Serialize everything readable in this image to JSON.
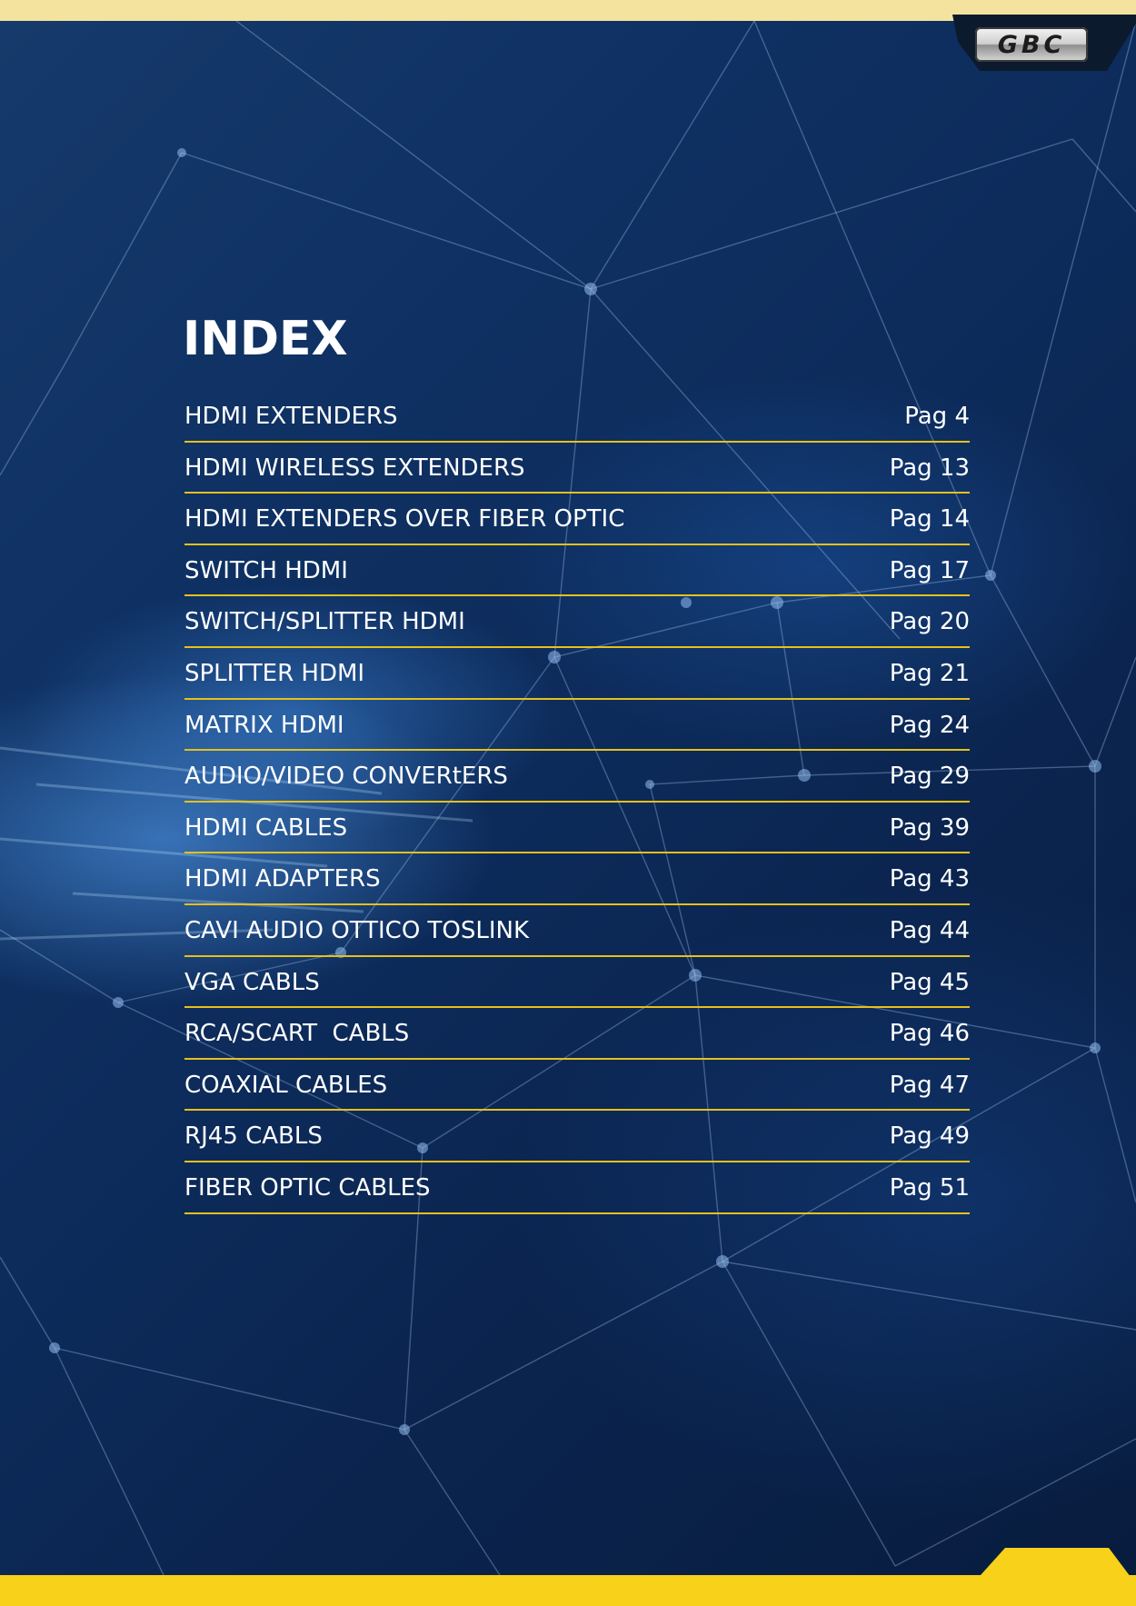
{
  "brand": {
    "logo_text": "GBC",
    "colors": {
      "accent_yellow": "#f7d11a",
      "divider_yellow": "#e6c119",
      "background_blue": "#0d2c5c",
      "text": "#ffffff"
    }
  },
  "index": {
    "title": "INDEX",
    "items": [
      {
        "label": "HDMI EXTENDERS",
        "page": "Pag 4"
      },
      {
        "label": "HDMI WIRELESS EXTENDERS",
        "page": "Pag 13"
      },
      {
        "label": "HDMI EXTENDERS OVER FIBER OPTIC",
        "page": "Pag 14"
      },
      {
        "label": "SWITCH HDMI",
        "page": "Pag 17"
      },
      {
        "label": "SWITCH/SPLITTER HDMI",
        "page": "Pag 20"
      },
      {
        "label": "SPLITTER HDMI",
        "page": "Pag 21"
      },
      {
        "label": "MATRIX HDMI",
        "page": "Pag 24"
      },
      {
        "label": "AUDIO/VIDEO CONVERtERS",
        "page": "Pag 29"
      },
      {
        "label": "HDMI CABLES",
        "page": "Pag 39"
      },
      {
        "label": "HDMI ADAPTERS",
        "page": "Pag 43"
      },
      {
        "label": "CAVI AUDIO OTTICO TOSLINK",
        "page": "Pag 44"
      },
      {
        "label": "VGA CABLS",
        "page": "Pag 45"
      },
      {
        "label": "RCA/SCART  CABLS",
        "page": "Pag 46"
      },
      {
        "label": "COAXIAL CABLES",
        "page": "Pag 47"
      },
      {
        "label": "RJ45 CABLS",
        "page": "Pag 49"
      },
      {
        "label": "FIBER OPTIC CABLES",
        "page": "Pag 51"
      }
    ]
  }
}
